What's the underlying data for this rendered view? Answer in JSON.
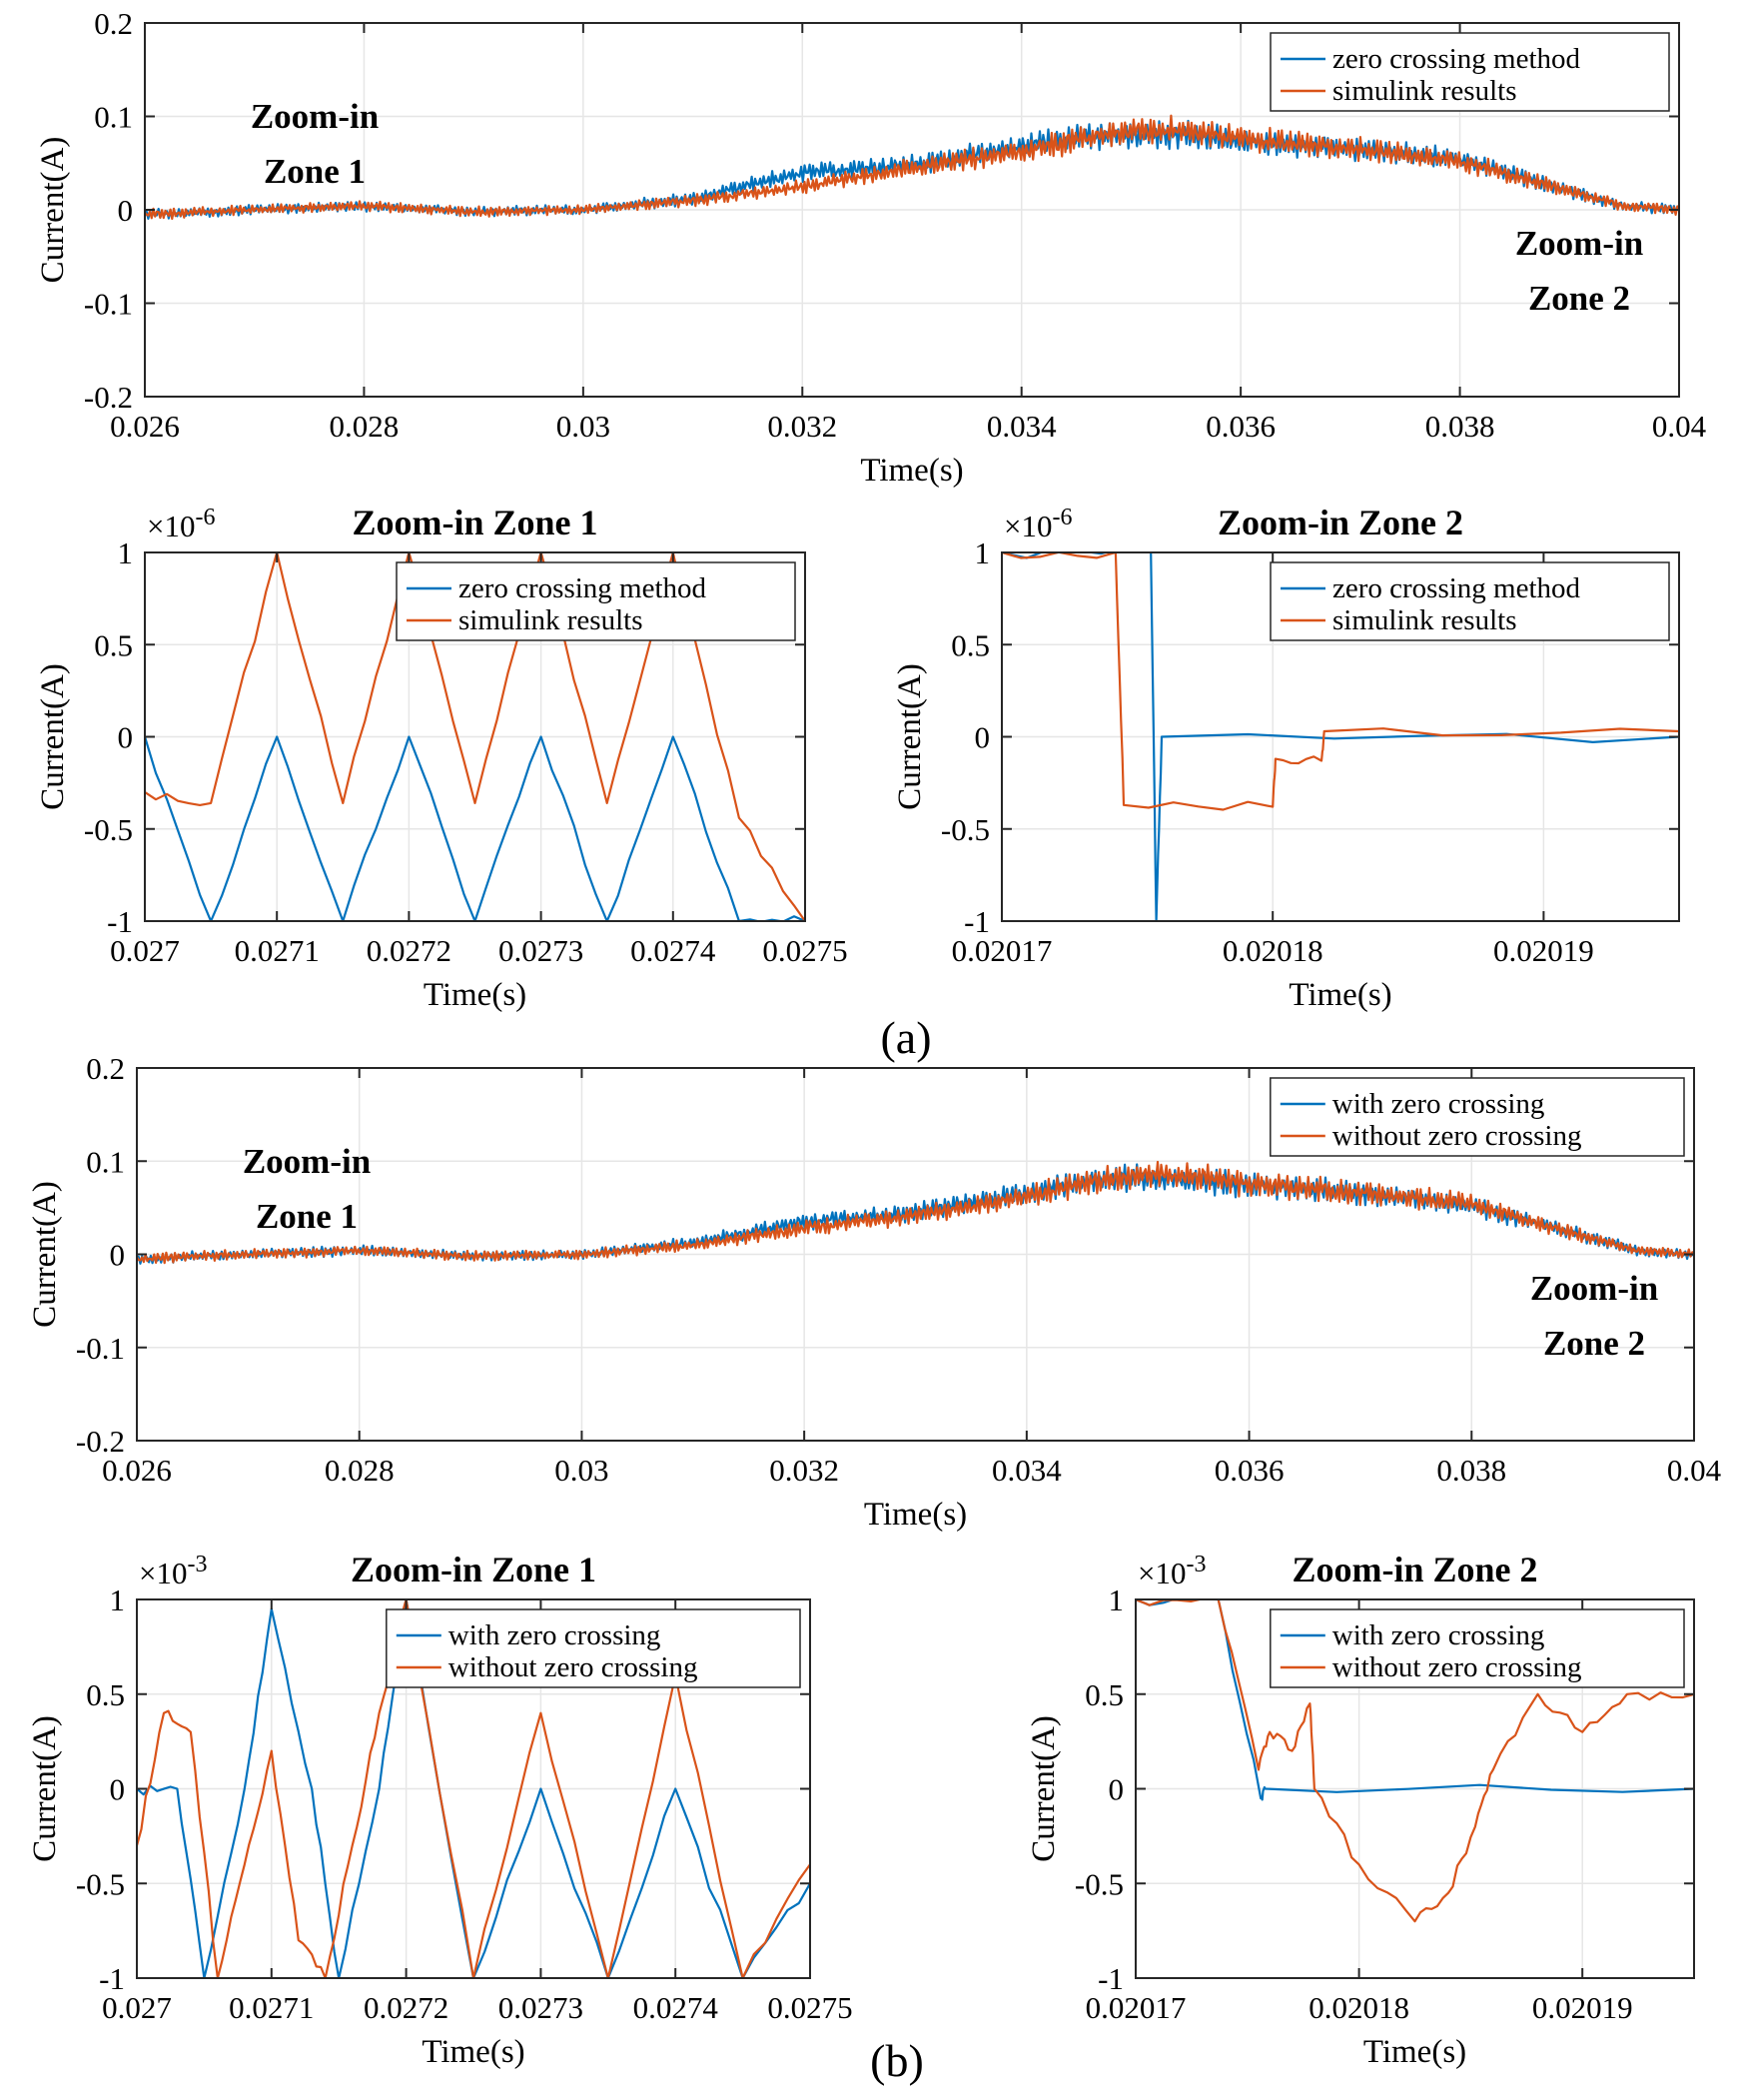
{
  "figure": {
    "subfigure_labels": [
      "(a)",
      "(b)"
    ]
  },
  "colors": {
    "series1": "#0072bd",
    "series2": "#d95319"
  },
  "chart_data": [
    {
      "id": "a-main",
      "type": "line",
      "xlabel": "Time(s)",
      "ylabel": "Current(A)",
      "title": "",
      "xlim": [
        0.026,
        0.04
      ],
      "ylim": [
        -0.2,
        0.2
      ],
      "xticks": [
        0.026,
        0.028,
        0.03,
        0.032,
        0.034,
        0.036,
        0.038,
        0.04
      ],
      "xticklabels": [
        "0.026",
        "0.028",
        "0.03",
        "0.032",
        "0.034",
        "0.036",
        "0.038",
        "0.04"
      ],
      "yticks": [
        -0.2,
        -0.1,
        0,
        0.1,
        0.2
      ],
      "yticklabels": [
        "-0.2",
        "-0.1",
        "0",
        "0.1",
        "0.2"
      ],
      "exponent": "",
      "grid": true,
      "legend_position": "top-right",
      "annotations": [
        {
          "lines": [
            "Zoom-in",
            "Zone 1"
          ],
          "position": "upper-left"
        },
        {
          "lines": [
            "Zoom-in",
            "Zone 2"
          ],
          "position": "lower-right"
        }
      ],
      "series": [
        {
          "name": "zero crossing method",
          "color": "#0072bd",
          "x": [
            0.026,
            0.027,
            0.028,
            0.029,
            0.03,
            0.031,
            0.032,
            0.033,
            0.034,
            0.0345,
            0.035,
            0.0355,
            0.036,
            0.037,
            0.038,
            0.039,
            0.0395,
            0.04
          ],
          "y": [
            -0.005,
            0.0,
            0.004,
            -0.002,
            0.0,
            0.012,
            0.04,
            0.048,
            0.068,
            0.078,
            0.08,
            0.08,
            0.074,
            0.066,
            0.054,
            0.02,
            0.004,
            0.0
          ]
        },
        {
          "name": "simulink results",
          "color": "#d95319",
          "x": [
            0.026,
            0.027,
            0.028,
            0.029,
            0.03,
            0.031,
            0.032,
            0.033,
            0.034,
            0.0345,
            0.035,
            0.0355,
            0.036,
            0.037,
            0.038,
            0.039,
            0.0395,
            0.04
          ],
          "y": [
            -0.005,
            0.0,
            0.004,
            -0.002,
            0.0,
            0.01,
            0.025,
            0.045,
            0.062,
            0.075,
            0.085,
            0.085,
            0.077,
            0.066,
            0.052,
            0.02,
            0.004,
            0.0
          ]
        }
      ]
    },
    {
      "id": "a-zone1",
      "type": "line",
      "xlabel": "Time(s)",
      "ylabel": "Current(A)",
      "title": "Zoom-in Zone 1",
      "xlim": [
        0.027,
        0.0275
      ],
      "ylim": [
        -1,
        1
      ],
      "xticks": [
        0.027,
        0.0271,
        0.0272,
        0.0273,
        0.0274,
        0.0275
      ],
      "xticklabels": [
        "0.027",
        "0.0271",
        "0.0272",
        "0.0273",
        "0.0274",
        "0.0275"
      ],
      "yticks": [
        -1,
        -0.5,
        0,
        0.5,
        1
      ],
      "yticklabels": [
        "-1",
        "-0.5",
        "0",
        "0.5",
        "1"
      ],
      "exponent_base": "×10",
      "exponent_power": "-6",
      "grid": true,
      "legend_position": "top-right",
      "series": [
        {
          "name": "zero crossing method",
          "color": "#0072bd",
          "x": [
            0.027,
            0.02705,
            0.0271,
            0.02715,
            0.0272,
            0.02725,
            0.0273,
            0.02735,
            0.0274,
            0.02745,
            0.0275
          ],
          "y": [
            0.0,
            -1.0,
            0.0,
            -1.0,
            0.0,
            -1.0,
            0.0,
            -1.0,
            0.0,
            -1.0,
            -1.0
          ]
        },
        {
          "name": "simulink results",
          "color": "#d95319",
          "x": [
            0.027,
            0.02705,
            0.0271,
            0.02715,
            0.0272,
            0.02725,
            0.0273,
            0.02735,
            0.0274,
            0.02745,
            0.0275
          ],
          "y": [
            -0.3,
            -0.36,
            1.0,
            -0.36,
            1.0,
            -0.36,
            1.0,
            -0.36,
            1.0,
            -0.44,
            -1.0
          ]
        }
      ]
    },
    {
      "id": "a-zone2",
      "type": "line",
      "xlabel": "Time(s)",
      "ylabel": "Current(A)",
      "title": "Zoom-in Zone 2",
      "xlim": [
        0.02017,
        0.020195
      ],
      "ylim": [
        -1,
        1
      ],
      "xticks": [
        0.02017,
        0.02018,
        0.02019
      ],
      "xticklabels": [
        "0.02017",
        "0.02018",
        "0.02019"
      ],
      "yticks": [
        -1,
        -0.5,
        0,
        0.5,
        1
      ],
      "yticklabels": [
        "-1",
        "-0.5",
        "0",
        "0.5",
        "1"
      ],
      "exponent_base": "×10",
      "exponent_power": "-6",
      "grid": true,
      "legend_position": "top-right",
      "series": [
        {
          "name": "zero crossing method",
          "color": "#0072bd",
          "x": [
            0.02017,
            0.0201755,
            0.0201757,
            0.0201759,
            0.020195
          ],
          "y": [
            1.0,
            1.0,
            -1.0,
            0.0,
            0.0
          ]
        },
        {
          "name": "simulink results",
          "color": "#d95319",
          "x": [
            0.02017,
            0.0201742,
            0.0201745,
            0.02018,
            0.0201801,
            0.0201818,
            0.0201819,
            0.020195
          ],
          "y": [
            1.0,
            1.0,
            -0.37,
            -0.38,
            -0.12,
            -0.13,
            0.03,
            0.03
          ]
        }
      ]
    },
    {
      "id": "b-main",
      "type": "line",
      "xlabel": "Time(s)",
      "ylabel": "Current(A)",
      "title": "",
      "xlim": [
        0.026,
        0.04
      ],
      "ylim": [
        -0.2,
        0.2
      ],
      "xticks": [
        0.026,
        0.028,
        0.03,
        0.032,
        0.034,
        0.036,
        0.038,
        0.04
      ],
      "xticklabels": [
        "0.026",
        "0.028",
        "0.03",
        "0.032",
        "0.034",
        "0.036",
        "0.038",
        "0.04"
      ],
      "yticks": [
        -0.2,
        -0.1,
        0,
        0.1,
        0.2
      ],
      "yticklabels": [
        "-0.2",
        "-0.1",
        "0",
        "0.1",
        "0.2"
      ],
      "exponent": "",
      "grid": true,
      "legend_position": "top-right",
      "annotations": [
        {
          "lines": [
            "Zoom-in",
            "Zone 1"
          ],
          "position": "upper-left"
        },
        {
          "lines": [
            "Zoom-in",
            "Zone 2"
          ],
          "position": "lower-right"
        }
      ],
      "series": [
        {
          "name": "with zero crossing",
          "color": "#0072bd",
          "x": [
            0.026,
            0.027,
            0.028,
            0.029,
            0.03,
            0.031,
            0.032,
            0.033,
            0.034,
            0.0345,
            0.035,
            0.0355,
            0.036,
            0.037,
            0.038,
            0.039,
            0.0395,
            0.04
          ],
          "y": [
            -0.005,
            0.0,
            0.004,
            -0.002,
            0.0,
            0.012,
            0.035,
            0.045,
            0.066,
            0.078,
            0.082,
            0.08,
            0.074,
            0.066,
            0.052,
            0.02,
            0.004,
            0.0
          ]
        },
        {
          "name": "without zero crossing",
          "color": "#d95319",
          "x": [
            0.026,
            0.027,
            0.028,
            0.029,
            0.03,
            0.031,
            0.032,
            0.033,
            0.034,
            0.0345,
            0.035,
            0.0355,
            0.036,
            0.037,
            0.038,
            0.039,
            0.0395,
            0.04
          ],
          "y": [
            -0.005,
            0.0,
            0.004,
            -0.002,
            0.0,
            0.01,
            0.028,
            0.042,
            0.062,
            0.076,
            0.085,
            0.084,
            0.076,
            0.066,
            0.054,
            0.02,
            0.004,
            0.0
          ]
        }
      ]
    },
    {
      "id": "b-zone1",
      "type": "line",
      "xlabel": "Time(s)",
      "ylabel": "Current(A)",
      "title": "Zoom-in Zone 1",
      "xlim": [
        0.027,
        0.0275
      ],
      "ylim": [
        -1,
        1
      ],
      "xticks": [
        0.027,
        0.0271,
        0.0272,
        0.0273,
        0.0274,
        0.0275
      ],
      "xticklabels": [
        "0.027",
        "0.0271",
        "0.0272",
        "0.0273",
        "0.0274",
        "0.0275"
      ],
      "yticks": [
        -1,
        -0.5,
        0,
        0.5,
        1
      ],
      "yticklabels": [
        "-1",
        "-0.5",
        "0",
        "0.5",
        "1"
      ],
      "exponent_base": "×10",
      "exponent_power": "-3",
      "grid": true,
      "legend_position": "top-right",
      "series": [
        {
          "name": "with zero crossing",
          "color": "#0072bd",
          "x": [
            0.027,
            0.02703,
            0.02705,
            0.02708,
            0.0271,
            0.02713,
            0.02715,
            0.02718,
            0.0272,
            0.02725,
            0.0273,
            0.02735,
            0.0274,
            0.02745,
            0.0275
          ],
          "y": [
            0.0,
            0.0,
            -1.0,
            0.0,
            0.95,
            0.0,
            -1.0,
            0.0,
            1.0,
            -1.0,
            0.0,
            -1.0,
            0.0,
            -1.0,
            -0.5
          ]
        },
        {
          "name": "without zero crossing",
          "color": "#d95319",
          "x": [
            0.027,
            0.02702,
            0.02704,
            0.02706,
            0.02708,
            0.0271,
            0.02712,
            0.02714,
            0.02716,
            0.02718,
            0.0272,
            0.02725,
            0.0273,
            0.02735,
            0.0274,
            0.02745,
            0.0275
          ],
          "y": [
            -0.3,
            0.4,
            0.3,
            -1.0,
            -0.4,
            0.2,
            -0.8,
            -1.0,
            -0.3,
            0.4,
            1.0,
            -1.0,
            0.4,
            -1.0,
            0.6,
            -1.0,
            -0.4
          ]
        }
      ]
    },
    {
      "id": "b-zone2",
      "type": "line",
      "xlabel": "Time(s)",
      "ylabel": "Current(A)",
      "title": "Zoom-in Zone 2",
      "xlim": [
        0.02017,
        0.020195
      ],
      "ylim": [
        -1,
        1
      ],
      "xticks": [
        0.02017,
        0.02018,
        0.02019
      ],
      "xticklabels": [
        "0.02017",
        "0.02018",
        "0.02019"
      ],
      "yticks": [
        -1,
        -0.5,
        0,
        0.5,
        1
      ],
      "yticklabels": [
        "-1",
        "-0.5",
        "0",
        "0.5",
        "1"
      ],
      "exponent_base": "×10",
      "exponent_power": "-3",
      "grid": true,
      "legend_position": "top-right",
      "series": [
        {
          "name": "with zero crossing",
          "color": "#0072bd",
          "x": [
            0.02017,
            0.0201737,
            0.0201756,
            0.0201758,
            0.020195
          ],
          "y": [
            1.0,
            1.0,
            -0.05,
            0.0,
            0.0
          ]
        },
        {
          "name": "without zero crossing",
          "color": "#d95319",
          "x": [
            0.02017,
            0.0201737,
            0.0201755,
            0.020176,
            0.020177,
            0.0201778,
            0.020178,
            0.02018,
            0.0201825,
            0.020184,
            0.0201852,
            0.020186,
            0.020188,
            0.02019,
            0.020192,
            0.020195
          ],
          "y": [
            1.0,
            1.0,
            0.1,
            0.3,
            0.2,
            0.45,
            0.0,
            -0.4,
            -0.7,
            -0.55,
            -0.2,
            0.1,
            0.5,
            0.3,
            0.5,
            0.5
          ]
        }
      ]
    }
  ]
}
